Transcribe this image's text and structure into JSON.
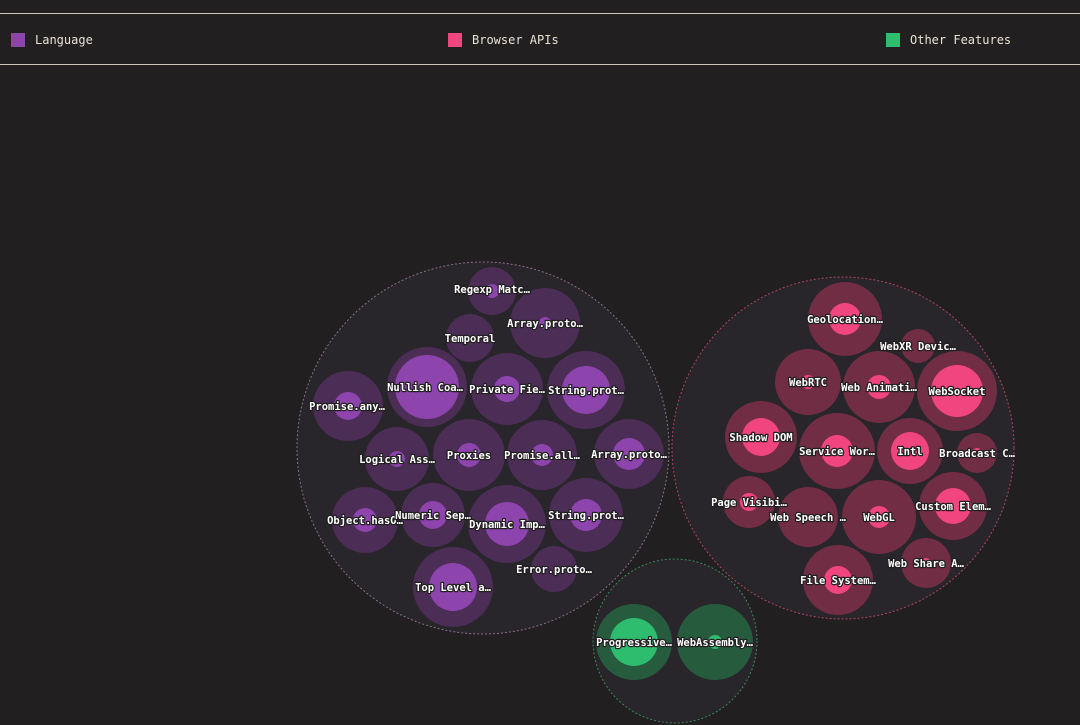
{
  "legend": [
    {
      "label": "Language",
      "color": "#8e44ad"
    },
    {
      "label": "Browser APIs",
      "color": "#f0457e"
    },
    {
      "label": "Other Features",
      "color": "#2ebd6e"
    }
  ],
  "chart_data": {
    "type": "bubble-pack",
    "groups": [
      {
        "name": "Language",
        "color": "#8e44ad",
        "features": [
          {
            "label": "Regexp Matc…"
          },
          {
            "label": "Array.proto…"
          },
          {
            "label": "Temporal"
          },
          {
            "label": "Nullish Coa…"
          },
          {
            "label": "Private Fie…"
          },
          {
            "label": "String.prot…"
          },
          {
            "label": "Promise.any…"
          },
          {
            "label": "Logical Ass…"
          },
          {
            "label": "Proxies"
          },
          {
            "label": "Promise.all…"
          },
          {
            "label": "Array.proto…"
          },
          {
            "label": "Object.hasO…"
          },
          {
            "label": "Numeric Sep…"
          },
          {
            "label": "Dynamic Imp…"
          },
          {
            "label": "String.prot…"
          },
          {
            "label": "Error.proto…"
          },
          {
            "label": "Top Level a…"
          }
        ]
      },
      {
        "name": "Browser APIs",
        "color": "#f0457e",
        "features": [
          {
            "label": "Geolocation…"
          },
          {
            "label": "WebXR Devic…"
          },
          {
            "label": "WebRTC"
          },
          {
            "label": "Web Animati…"
          },
          {
            "label": "WebSocket"
          },
          {
            "label": "Shadow DOM"
          },
          {
            "label": "Service Wor…"
          },
          {
            "label": "Intl"
          },
          {
            "label": "Broadcast C…"
          },
          {
            "label": "Page Visibi…"
          },
          {
            "label": "Web Speech …"
          },
          {
            "label": "WebGL"
          },
          {
            "label": "Custom Elem…"
          },
          {
            "label": "Web Share A…"
          },
          {
            "label": "File System…"
          }
        ]
      },
      {
        "name": "Other Features",
        "color": "#2ebd6e",
        "features": [
          {
            "label": "Progressive…"
          },
          {
            "label": "WebAssembly…"
          }
        ]
      }
    ]
  }
}
